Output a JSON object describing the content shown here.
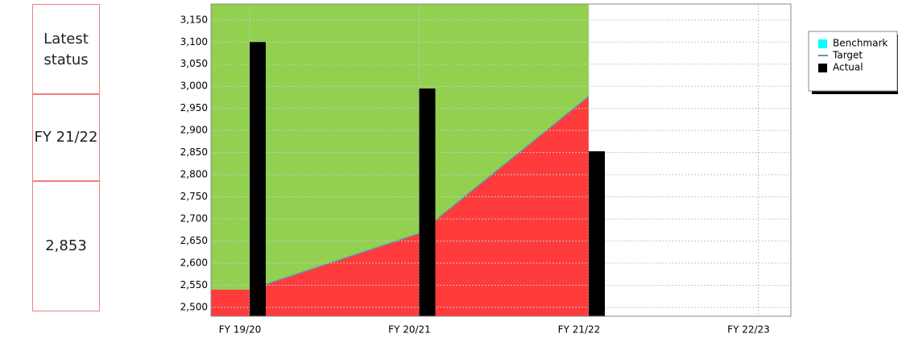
{
  "panel": [
    "Latest status",
    "FY 21/22",
    "2,853"
  ],
  "chart_data": {
    "type": "bar-area",
    "categories": [
      "FY 19/20",
      "FY 20/21",
      "FY 21/22",
      "FY 22/23"
    ],
    "series": [
      {
        "name": "Benchmark",
        "color": "#00ffff",
        "area_color": "#92d050",
        "values": [
          3186,
          3186,
          3186,
          null
        ]
      },
      {
        "name": "Target",
        "color": "#6a8fb0",
        "area_color": "#ff3b3b",
        "values": [
          2540,
          2667,
          2977,
          null
        ]
      },
      {
        "name": "Actual",
        "color": "#000000",
        "values": [
          3100,
          2995,
          2853,
          null
        ]
      }
    ],
    "ylim": [
      2480,
      3186
    ],
    "yticks": [
      {
        "value": 2500,
        "label": "2,500"
      },
      {
        "value": 2550,
        "label": "2,550"
      },
      {
        "value": 2600,
        "label": "2,600"
      },
      {
        "value": 2650,
        "label": "2,650"
      },
      {
        "value": 2700,
        "label": "2,700"
      },
      {
        "value": 2750,
        "label": "2,750"
      },
      {
        "value": 2800,
        "label": "2,800"
      },
      {
        "value": 2850,
        "label": "2,850"
      },
      {
        "value": 2900,
        "label": "2,900"
      },
      {
        "value": 2950,
        "label": "2,950"
      },
      {
        "value": 3000,
        "label": "3,000"
      },
      {
        "value": 3050,
        "label": "3,050"
      },
      {
        "value": 3100,
        "label": "3,100"
      },
      {
        "value": 3150,
        "label": "3,150"
      }
    ],
    "grid": true
  }
}
